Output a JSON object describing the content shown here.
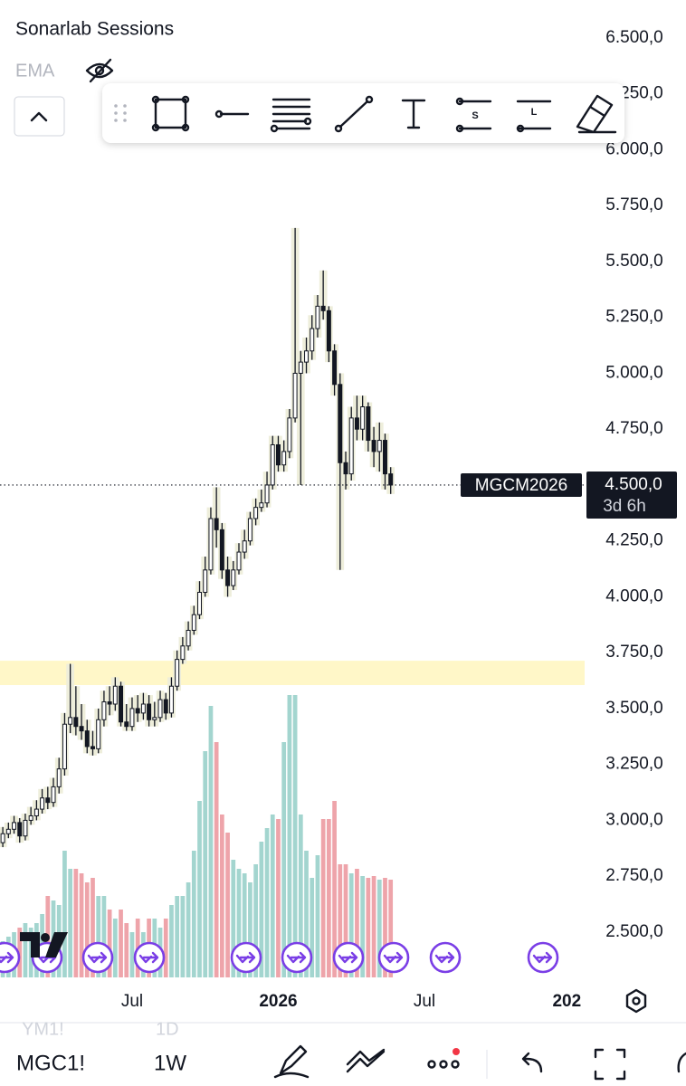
{
  "header": {
    "title": "Sonarlab Sessions",
    "indicator": "EMA"
  },
  "chart_data": {
    "type": "candlestick",
    "open": [
      2900,
      2940,
      2960,
      2990,
      2930,
      3000,
      3020,
      3050,
      3100,
      3080,
      3150,
      3230,
      3430,
      3460,
      3420,
      3400,
      3330,
      3320,
      3450,
      3530,
      3520,
      3600,
      3440,
      3420,
      3500,
      3480,
      3520,
      3450,
      3460,
      3540,
      3480,
      3600,
      3720,
      3780,
      3850,
      3920,
      4020,
      4120,
      4350,
      4300,
      4120,
      4050,
      4120,
      4200,
      4250,
      4350,
      4400,
      4420,
      4500,
      4680,
      4590,
      4650,
      4800,
      5000,
      5050,
      5100,
      5200,
      5300,
      5280,
      5100,
      4950,
      4600,
      4550,
      4800,
      4750,
      4850,
      4700,
      4650,
      4700,
      4550
    ],
    "high": [
      2970,
      2990,
      3020,
      3010,
      3030,
      3060,
      3090,
      3140,
      3150,
      3190,
      3280,
      3480,
      3700,
      3600,
      3520,
      3450,
      3400,
      3500,
      3580,
      3600,
      3640,
      3620,
      3520,
      3550,
      3560,
      3570,
      3560,
      3530,
      3580,
      3570,
      3640,
      3760,
      3820,
      3890,
      3960,
      4070,
      4180,
      4400,
      4490,
      4330,
      4180,
      4160,
      4240,
      4300,
      4380,
      4440,
      4480,
      4560,
      4720,
      4720,
      4700,
      4840,
      5650,
      5100,
      5160,
      5260,
      5350,
      5460,
      5300,
      5130,
      5000,
      4650,
      4850,
      4900,
      4900,
      4870,
      4760,
      4780,
      4730,
      4580
    ],
    "low": [
      2880,
      2920,
      2940,
      2900,
      2910,
      2980,
      3000,
      3030,
      3050,
      3060,
      3120,
      3200,
      3390,
      3380,
      3360,
      3300,
      3290,
      3300,
      3420,
      3470,
      3490,
      3420,
      3400,
      3400,
      3440,
      3450,
      3420,
      3420,
      3440,
      3450,
      3460,
      3580,
      3700,
      3760,
      3830,
      3900,
      4000,
      4100,
      4220,
      4080,
      4000,
      4030,
      4100,
      4170,
      4230,
      4320,
      4380,
      4400,
      4480,
      4560,
      4560,
      4620,
      4780,
      4500,
      5000,
      5060,
      5160,
      5240,
      5050,
      4900,
      4120,
      4480,
      4520,
      4700,
      4700,
      4650,
      4580,
      4560,
      4480,
      4460
    ],
    "close": [
      2940,
      2960,
      2990,
      2930,
      3000,
      3020,
      3050,
      3100,
      3080,
      3150,
      3230,
      3430,
      3460,
      3420,
      3400,
      3330,
      3320,
      3450,
      3530,
      3520,
      3600,
      3440,
      3420,
      3500,
      3480,
      3520,
      3450,
      3460,
      3540,
      3480,
      3600,
      3720,
      3780,
      3850,
      3920,
      4020,
      4120,
      4350,
      4300,
      4120,
      4050,
      4120,
      4200,
      4250,
      4350,
      4400,
      4420,
      4500,
      4680,
      4590,
      4650,
      4800,
      5000,
      5050,
      5100,
      5200,
      5300,
      5280,
      5100,
      4950,
      4600,
      4550,
      4800,
      4750,
      4850,
      4700,
      4650,
      4700,
      4550,
      4500
    ],
    "volume": [
      40,
      45,
      50,
      55,
      60,
      55,
      60,
      70,
      90,
      85,
      80,
      140,
      120,
      120,
      115,
      105,
      110,
      90,
      90,
      75,
      65,
      75,
      60,
      50,
      65,
      50,
      65,
      65,
      55,
      65,
      80,
      90,
      90,
      105,
      140,
      195,
      250,
      300,
      260,
      180,
      160,
      130,
      120,
      115,
      105,
      125,
      150,
      165,
      180,
      175,
      260,
      312,
      312,
      180,
      140,
      110,
      135,
      175,
      175,
      195,
      125,
      125,
      115,
      120,
      112,
      110,
      112,
      108,
      110,
      108
    ],
    "up_color": "#ffffff",
    "down_color": "#131722",
    "wick_color": "#131722",
    "range_color": "#eeeedb",
    "volume_up_color": "#a3d5cf",
    "volume_down_color": "#eea4aa",
    "xlim": [
      -0.5,
      103.5
    ],
    "xticks": [
      {
        "value": 23,
        "label": "Jul"
      },
      {
        "value": 49,
        "label": "2026"
      },
      {
        "value": 75,
        "label": "Jul"
      },
      {
        "value": 101,
        "label": "202"
      }
    ],
    "ylim": [
      2277,
      6670
    ],
    "yticks": [
      {
        "value": 2500,
        "label": "2.500,0"
      },
      {
        "value": 2750,
        "label": "2.750,0"
      },
      {
        "value": 3000,
        "label": "3.000,0"
      },
      {
        "value": 3250,
        "label": "3.250,0"
      },
      {
        "value": 3500,
        "label": "3.500,0"
      },
      {
        "value": 3750,
        "label": "3.750,0"
      },
      {
        "value": 4000,
        "label": "4.000,0"
      },
      {
        "value": 4250,
        "label": "4.250,0"
      },
      {
        "value": 4500,
        "label": "4.500,0"
      },
      {
        "value": 4750,
        "label": "4.750,0"
      },
      {
        "value": 5000,
        "label": "5.000,0"
      },
      {
        "value": 5250,
        "label": "5.250,0"
      },
      {
        "value": 5500,
        "label": "5.500,0"
      },
      {
        "value": 5750,
        "label": "5.750,0"
      },
      {
        "value": 6000,
        "label": "6.000,0"
      },
      {
        "value": 6250,
        "label": "6.250,0"
      },
      {
        "value": 6500,
        "label": "6.500,0"
      }
    ],
    "zones": [
      {
        "from": 3605,
        "to": 3714,
        "color": "#fff7c8"
      }
    ],
    "last_price": {
      "value": 4500,
      "label": "4.500,0",
      "symbol": "MGCM2026",
      "countdown": "3d 6h"
    }
  },
  "footer": {
    "hidden_symbol": "YM1!",
    "hidden_interval": "1D",
    "symbol": "MGC1!",
    "interval": "1W"
  }
}
